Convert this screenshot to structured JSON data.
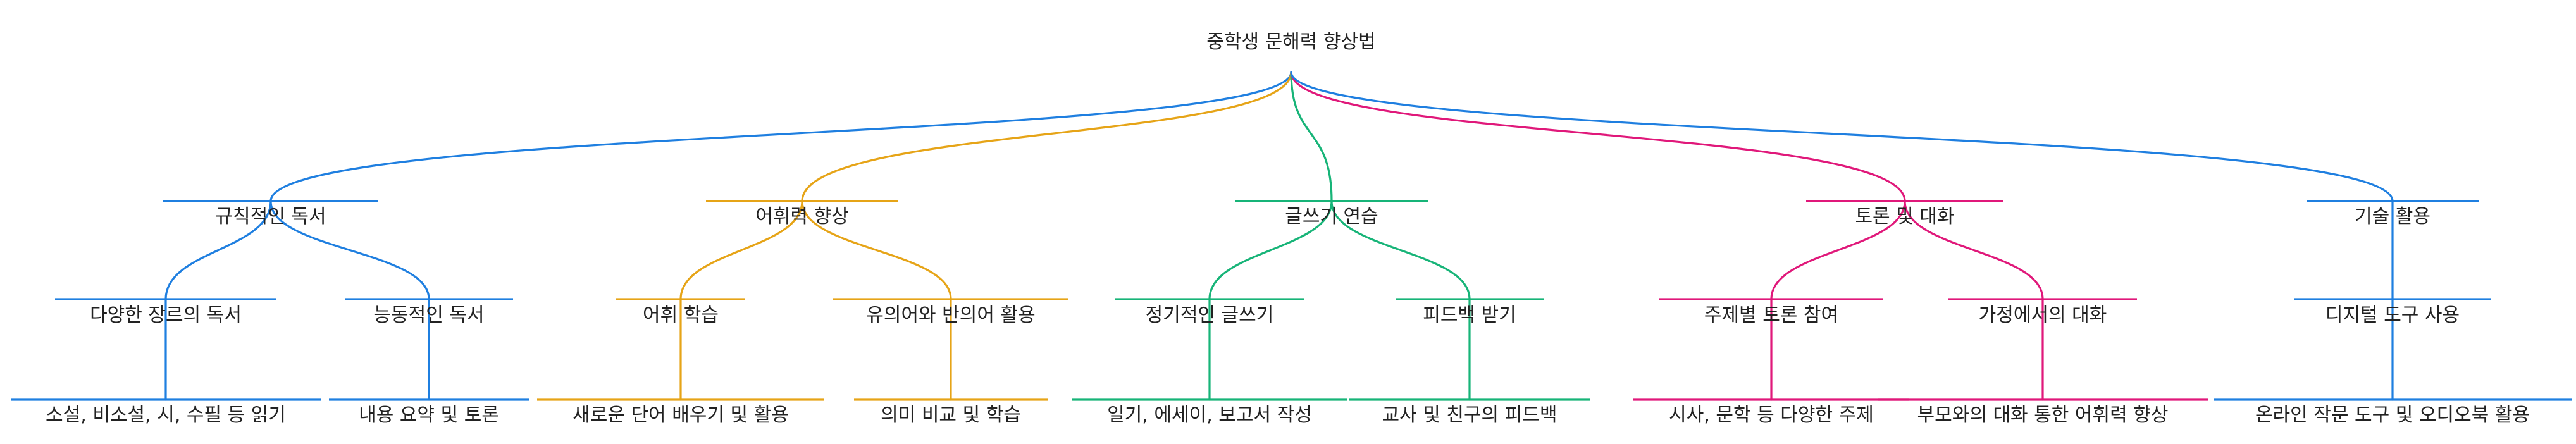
{
  "colors": {
    "reading": "#1f7fe0",
    "vocabulary": "#e6a417",
    "writing": "#17b478",
    "discussion": "#e0187a",
    "technology": "#1f7fe0"
  },
  "root": {
    "label": "중학생 문해력 향상법"
  },
  "branches": [
    {
      "id": "reading",
      "label": "규칙적인 독서",
      "color_key": "reading",
      "children": [
        {
          "label": "다양한 장르의 독서",
          "leaves": [
            {
              "label": "소설, 비소설, 시, 수필 등 읽기"
            }
          ]
        },
        {
          "label": "능동적인 독서",
          "leaves": [
            {
              "label": "내용 요약 및 토론"
            }
          ]
        }
      ]
    },
    {
      "id": "vocabulary",
      "label": "어휘력 향상",
      "color_key": "vocabulary",
      "children": [
        {
          "label": "어휘 학습",
          "leaves": [
            {
              "label": "새로운 단어 배우기 및 활용"
            }
          ]
        },
        {
          "label": "유의어와 반의어 활용",
          "leaves": [
            {
              "label": "의미 비교 및 학습"
            }
          ]
        }
      ]
    },
    {
      "id": "writing",
      "label": "글쓰기 연습",
      "color_key": "writing",
      "children": [
        {
          "label": "정기적인 글쓰기",
          "leaves": [
            {
              "label": "일기, 에세이, 보고서 작성"
            }
          ]
        },
        {
          "label": "피드백 받기",
          "leaves": [
            {
              "label": "교사 및 친구의 피드백"
            }
          ]
        }
      ]
    },
    {
      "id": "discussion",
      "label": "토론 및 대화",
      "color_key": "discussion",
      "children": [
        {
          "label": "주제별 토론 참여",
          "leaves": [
            {
              "label": "시사, 문학 등 다양한 주제"
            }
          ]
        },
        {
          "label": "가정에서의 대화",
          "leaves": [
            {
              "label": "부모와의 대화 통한 어휘력 향상"
            }
          ]
        }
      ]
    },
    {
      "id": "technology",
      "label": "기술 활용",
      "color_key": "technology",
      "children": [
        {
          "label": "디지털 도구 사용",
          "leaves": [
            {
              "label": "온라인 작문 도구 및 오디오북 활용"
            }
          ]
        }
      ]
    }
  ]
}
